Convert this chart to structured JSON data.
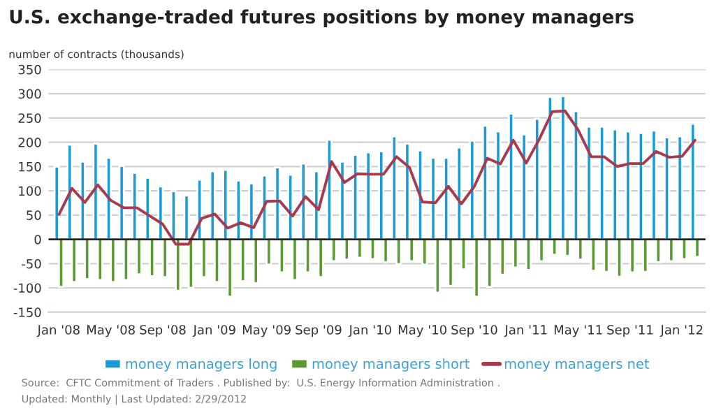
{
  "chart_data": {
    "type": "bar",
    "title": "U.S. exchange-traded futures positions by money managers",
    "ylabel": "number of contracts (thousands)",
    "categories": [
      "Jan '08",
      null,
      null,
      null,
      "May '08",
      null,
      null,
      null,
      "Sep '08",
      null,
      null,
      null,
      "Jan '09",
      null,
      null,
      null,
      "May '09",
      null,
      null,
      null,
      "Sep '09",
      null,
      null,
      null,
      "Jan '10",
      null,
      null,
      null,
      "May '10",
      null,
      null,
      null,
      "Sep '10",
      null,
      null,
      null,
      "Jan '11",
      null,
      null,
      null,
      "May '11",
      null,
      null,
      null,
      "Sep '11",
      null,
      null,
      null,
      "Jan '12",
      null
    ],
    "series": [
      {
        "name": "money managers long",
        "color": "#1b9ad8",
        "values": [
          150,
          195,
          160,
          197,
          168,
          151,
          137,
          127,
          109,
          99,
          90,
          123,
          140,
          143,
          121,
          115,
          131,
          148,
          133,
          156,
          140,
          205,
          160,
          174,
          179,
          181,
          212,
          197,
          183,
          168,
          168,
          189,
          203,
          234,
          222,
          259,
          216,
          248,
          293,
          295,
          264,
          232,
          232,
          226,
          222,
          219,
          224,
          210,
          212,
          238
        ]
      },
      {
        "name": "money managers short",
        "color": "#5b9a33",
        "values": [
          -98,
          -88,
          -82,
          -84,
          -88,
          -84,
          -72,
          -76,
          -78,
          -106,
          -100,
          -78,
          -88,
          -118,
          -86,
          -90,
          -52,
          -68,
          -84,
          -68,
          -78,
          -45,
          -42,
          -38,
          -41,
          -47,
          -51,
          -45,
          -52,
          -110,
          -96,
          -62,
          -118,
          -98,
          -73,
          -58,
          -63,
          -45,
          -32,
          -34,
          -42,
          -65,
          -67,
          -77,
          -68,
          -67,
          -47,
          -45,
          -41,
          -36
        ]
      },
      {
        "name": "money managers net",
        "type": "line",
        "color": "#a83a4c",
        "values": [
          51,
          105,
          76,
          112,
          80,
          65,
          65,
          48,
          31,
          -10,
          -10,
          43,
          52,
          23,
          34,
          24,
          78,
          79,
          48,
          88,
          61,
          160,
          117,
          135,
          134,
          134,
          170,
          148,
          77,
          75,
          109,
          73,
          109,
          167,
          155,
          204,
          157,
          206,
          263,
          264,
          225,
          170,
          170,
          150,
          156,
          156,
          181,
          169,
          171,
          204
        ]
      }
    ],
    "ylim": [
      -150,
      350
    ],
    "yticks": [
      -150,
      -100,
      -50,
      0,
      50,
      100,
      150,
      200,
      250,
      300,
      350
    ],
    "grid": "y",
    "legend": "bottom",
    "marker": "none",
    "line_style": "solid",
    "annotations": [
      "Source:  CFTC Commitment of Traders . Published by:  U.S. Energy Information Administration .",
      "Updated: Monthly | Last Updated: 2/29/2012"
    ]
  }
}
